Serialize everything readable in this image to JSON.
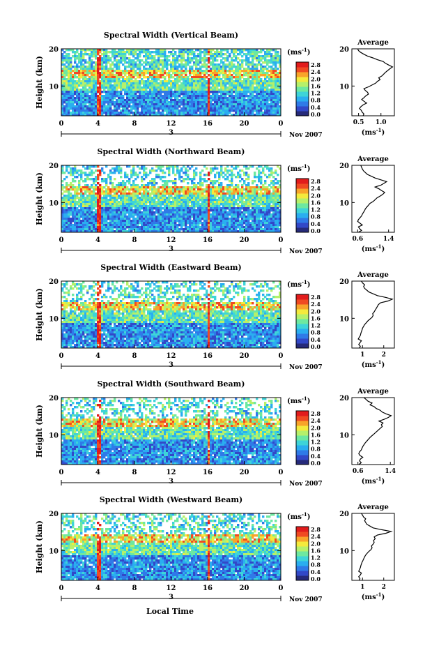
{
  "chart_data": {
    "type": "heatmap",
    "panels": [
      {
        "title": "Spectral Width (Vertical Beam)",
        "profile": {
          "title": "Average",
          "xticks": [
            "0.5",
            "1.0"
          ],
          "xlim": [
            0.35,
            1.3
          ],
          "x": [
            0.6,
            0.62,
            0.58,
            0.56,
            0.52,
            0.55,
            0.6,
            0.68,
            0.62,
            0.57,
            0.62,
            0.66,
            0.72,
            0.7,
            0.65,
            0.62,
            0.72,
            0.8,
            0.88,
            0.92,
            0.98,
            0.95,
            1.02,
            1.06,
            1.1,
            1.15,
            1.2,
            1.26,
            1.18,
            1.1,
            1.05,
            0.92,
            0.82,
            0.7,
            0.62,
            0.55,
            0.5,
            0.48
          ]
        }
      },
      {
        "title": "Spectral Width (Northward Beam)",
        "profile": {
          "title": "Average",
          "xticks": [
            "0.6",
            "1.4"
          ],
          "xlim": [
            0.45,
            1.55
          ],
          "x": [
            0.62,
            0.7,
            0.65,
            0.62,
            0.72,
            0.66,
            0.6,
            0.62,
            0.66,
            0.7,
            0.72,
            0.75,
            0.78,
            0.8,
            0.84,
            0.88,
            0.92,
            1.0,
            1.05,
            1.1,
            1.18,
            1.25,
            1.3,
            1.22,
            1.15,
            1.05,
            1.2,
            1.28,
            1.35,
            1.2,
            1.05,
            0.95,
            0.85,
            0.8,
            0.75,
            0.72,
            0.7,
            0.68
          ]
        }
      },
      {
        "title": "Spectral Width (Eastward Beam)",
        "profile": {
          "title": "Average",
          "xticks": [
            "1",
            "2"
          ],
          "xlim": [
            0.5,
            2.5
          ],
          "x": [
            0.85,
            0.9,
            0.82,
            0.88,
            0.95,
            0.8,
            0.85,
            0.9,
            0.92,
            0.95,
            0.98,
            1.0,
            1.05,
            1.1,
            1.18,
            1.25,
            1.35,
            1.45,
            1.5,
            1.48,
            1.55,
            1.6,
            1.65,
            1.7,
            1.75,
            1.85,
            2.2,
            2.4,
            2.1,
            1.7,
            1.5,
            1.3,
            1.2,
            1.1,
            1.05,
            1.1,
            1.0,
            0.95
          ]
        }
      },
      {
        "title": "Spectral Width (Southward Beam)",
        "profile": {
          "title": "Average",
          "xticks": [
            "0.6",
            "1.4"
          ],
          "xlim": [
            0.45,
            1.5
          ],
          "x": [
            0.62,
            0.68,
            0.64,
            0.66,
            0.72,
            0.65,
            0.62,
            0.64,
            0.68,
            0.7,
            0.72,
            0.75,
            0.78,
            0.82,
            0.86,
            0.9,
            0.95,
            1.0,
            1.05,
            1.1,
            1.15,
            1.2,
            1.18,
            1.22,
            1.12,
            1.25,
            1.35,
            1.42,
            1.3,
            1.2,
            1.15,
            1.05,
            1.0,
            0.9,
            0.95,
            0.85,
            0.8,
            0.75
          ]
        }
      },
      {
        "title": "Spectral Width (Westward Beam)",
        "profile": {
          "title": "Average",
          "xticks": [
            "1",
            "2"
          ],
          "xlim": [
            0.5,
            2.5
          ],
          "x": [
            0.85,
            0.88,
            0.82,
            0.9,
            0.95,
            0.82,
            0.86,
            0.9,
            0.92,
            0.95,
            0.98,
            1.02,
            1.06,
            1.1,
            1.15,
            1.22,
            1.3,
            1.4,
            1.45,
            1.42,
            1.5,
            1.55,
            1.52,
            1.6,
            1.55,
            1.7,
            2.1,
            2.35,
            1.9,
            1.5,
            1.35,
            1.2,
            1.15,
            1.1,
            1.15,
            1.05,
            1.0,
            0.95
          ]
        }
      }
    ],
    "heatmap": {
      "xticks": [
        "0",
        "4",
        "8",
        "12",
        "16",
        "20",
        "0"
      ],
      "xlim": [
        0,
        24
      ],
      "yticks": [
        "10",
        "20"
      ],
      "ylim": [
        2,
        20
      ],
      "ylabel": "Height (km)",
      "day_label": "3",
      "month_label": "Nov 2007",
      "xlabel": "Local Time"
    },
    "colorbar": {
      "unit_base": "(ms",
      "unit_exp": "-1",
      "unit_close": ")",
      "ticks": [
        "2.8",
        "2.4",
        "2.0",
        "1.6",
        "1.2",
        "0.8",
        "0.4",
        "0.0"
      ],
      "colors": [
        "#262a7a",
        "#3248c8",
        "#2f7ae8",
        "#2aaef0",
        "#3ed4d8",
        "#6de8a0",
        "#b6f06a",
        "#f4ea3c",
        "#f8a42a",
        "#f04a22",
        "#e21c1c"
      ]
    },
    "profile_unit": {
      "base": "(ms",
      "exp": "-1",
      "close": ")"
    }
  }
}
